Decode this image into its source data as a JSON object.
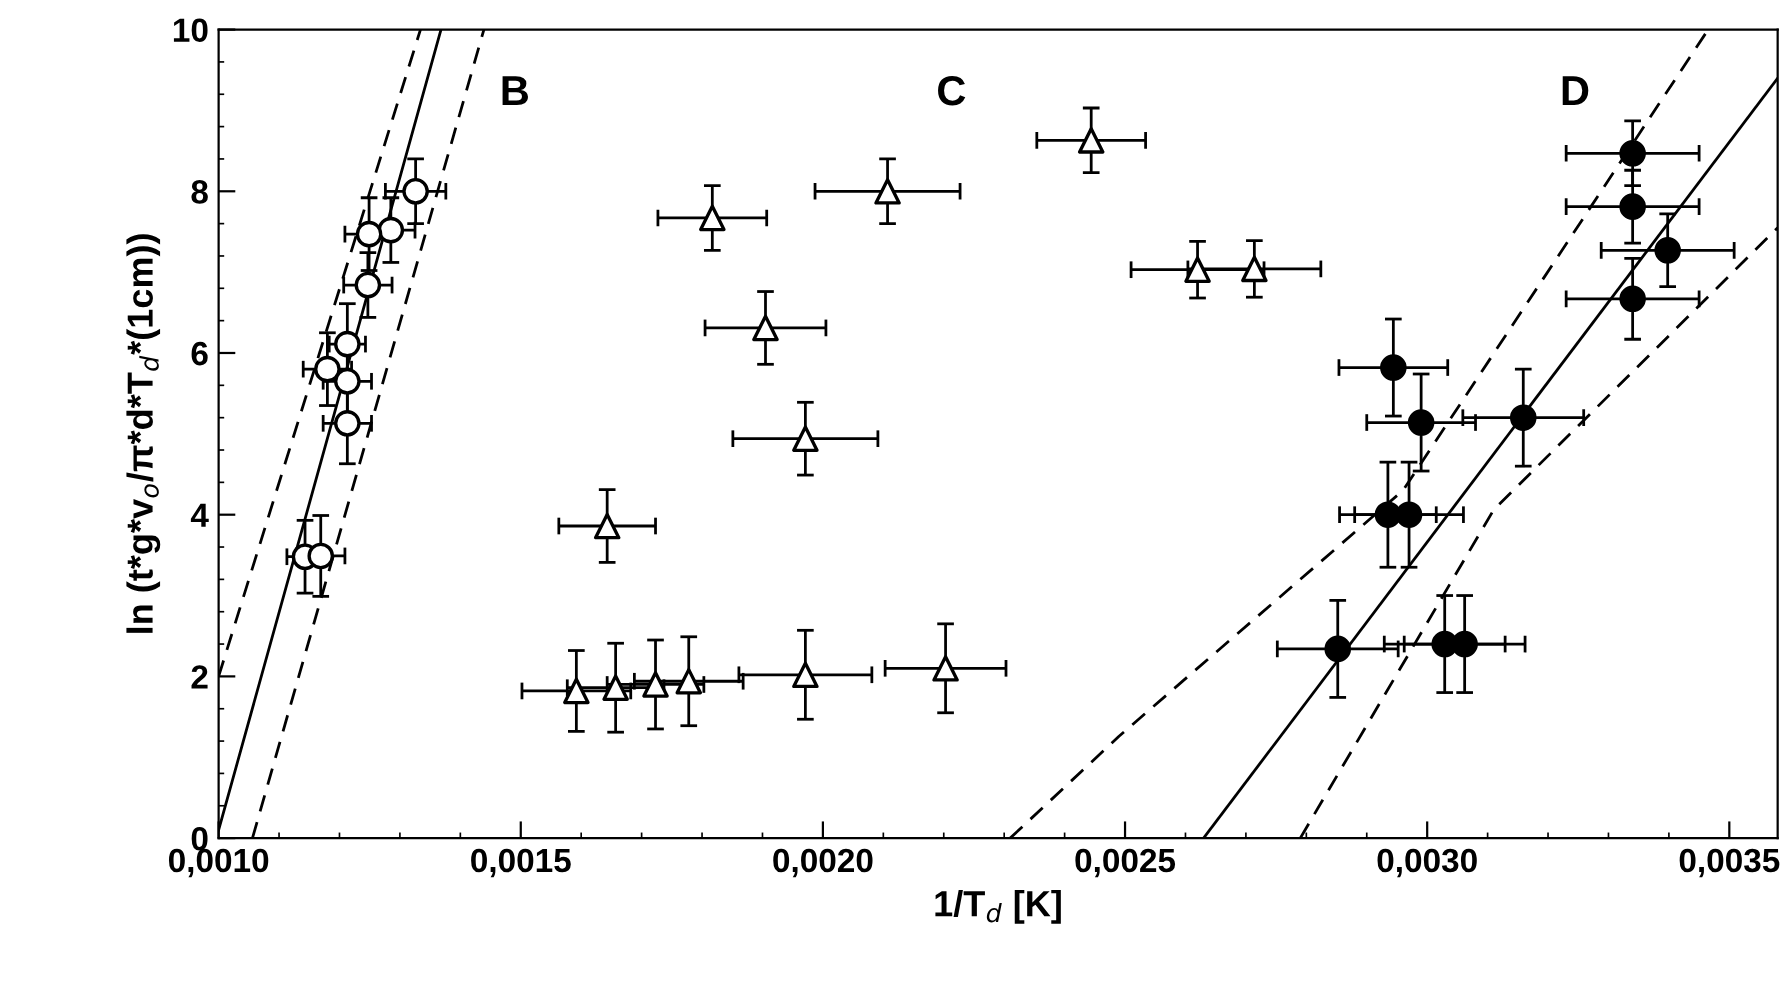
{
  "chart_data": {
    "type": "scatter",
    "xlabel": "1/T$_{d}$ [K]",
    "ylabel": "ln (t*g*v$_{o}$/π*d*T$_{d}$*(1cm))",
    "xlim": [
      0.001,
      0.00358
    ],
    "ylim": [
      0,
      10
    ],
    "xticks": [
      {
        "value": 0.001,
        "label": "0,0010"
      },
      {
        "value": 0.0015,
        "label": "0,0015"
      },
      {
        "value": 0.002,
        "label": "0,0020"
      },
      {
        "value": 0.0025,
        "label": "0,0025"
      },
      {
        "value": 0.003,
        "label": "0,0030"
      },
      {
        "value": 0.0035,
        "label": "0,0035"
      }
    ],
    "yticks": [
      0,
      2,
      4,
      6,
      8,
      10
    ],
    "grid": false,
    "legend": false,
    "annotations": [
      "B",
      "C",
      "D"
    ],
    "series": [
      {
        "type": "line",
        "color": "#000000",
        "marker": "none",
        "line_style": "solid",
        "x": [
          0.001,
          0.001368
        ],
        "values": [
          0.1,
          10
        ]
      },
      {
        "type": "line",
        "color": "#000000",
        "marker": "none",
        "line_style": "dashed",
        "x": [
          0.001,
          0.001334
        ],
        "values": [
          2,
          10
        ]
      },
      {
        "type": "line",
        "color": "#000000",
        "marker": "none",
        "line_style": "dashed",
        "x": [
          0.001056,
          0.001439
        ],
        "values": [
          0,
          10
        ]
      },
      {
        "type": "line",
        "color": "#000000",
        "marker": "none",
        "line_style": "solid",
        "x": [
          0.00263,
          0.00358
        ],
        "values": [
          0,
          9.4
        ]
      },
      {
        "type": "line",
        "color": "#000000",
        "marker": "none",
        "line_style": "dashed",
        "x": [
          0.00231,
          0.00249,
          0.00296,
          0.003465
        ],
        "values": [
          0,
          1.26,
          4.3,
          10
        ]
      },
      {
        "type": "line",
        "color": "#000000",
        "marker": "none",
        "line_style": "dashed",
        "x": [
          0.00279,
          0.00311,
          0.00358
        ],
        "values": [
          0,
          4.06,
          7.55
        ]
      },
      {
        "color": "#ffffff",
        "marker": "circle",
        "x": [
          0.001326,
          0.001285,
          0.001249,
          0.001247,
          0.001213,
          0.00118,
          0.001213,
          0.001213,
          0.001143,
          0.001169
        ],
        "values": [
          8.0,
          7.52,
          7.47,
          6.84,
          6.11,
          5.8,
          5.65,
          5.13,
          3.48,
          3.49
        ],
        "errors": [
          0.4,
          0.4,
          0.45,
          0.4,
          0.5,
          0.45,
          0.45,
          0.5,
          0.45,
          0.5
        ],
        "xerrors": [
          5e-05,
          4e-05,
          4e-05,
          4e-05,
          3e-05,
          4e-05,
          4e-05,
          4e-05,
          3e-05,
          4e-05
        ]
      },
      {
        "color": "#ffffff",
        "marker": "triangle",
        "x": [
          0.001817,
          0.002107,
          0.002444,
          0.001905,
          0.001971,
          0.001643,
          0.001592,
          0.001657,
          0.001723,
          0.001778,
          0.001971,
          0.002203,
          0.00262,
          0.002714
        ],
        "values": [
          7.67,
          8.0,
          8.63,
          6.31,
          4.94,
          3.86,
          1.82,
          1.86,
          1.9,
          1.94,
          2.02,
          2.1,
          7.03,
          7.04
        ],
        "errors": [
          0.4,
          0.4,
          0.4,
          0.45,
          0.45,
          0.45,
          0.5,
          0.55,
          0.55,
          0.55,
          0.55,
          0.55,
          0.35,
          0.35
        ],
        "xerrors": [
          9e-05,
          0.00012,
          9e-05,
          0.0001,
          0.00012,
          8e-05,
          9e-05,
          8e-05,
          8e-05,
          9e-05,
          0.00011,
          0.0001,
          0.00011,
          0.00011
        ]
      },
      {
        "color": "#000000",
        "marker": "circle",
        "x": [
          0.00334,
          0.00334,
          0.003398,
          0.00334,
          0.002944,
          0.00299,
          0.003159,
          0.002935,
          0.00297,
          0.002852,
          0.003029,
          0.003062
        ],
        "values": [
          8.47,
          7.81,
          7.27,
          6.67,
          5.82,
          5.14,
          5.2,
          4.0,
          4.0,
          2.34,
          2.4,
          2.4
        ],
        "errors": [
          0.4,
          0.45,
          0.45,
          0.5,
          0.6,
          0.6,
          0.6,
          0.65,
          0.65,
          0.6,
          0.6,
          0.6
        ],
        "xerrors": [
          0.00011,
          0.00011,
          0.00011,
          0.00011,
          9e-05,
          9e-05,
          0.0001,
          8e-05,
          9e-05,
          0.0001,
          0.0001,
          0.0001
        ]
      }
    ]
  }
}
